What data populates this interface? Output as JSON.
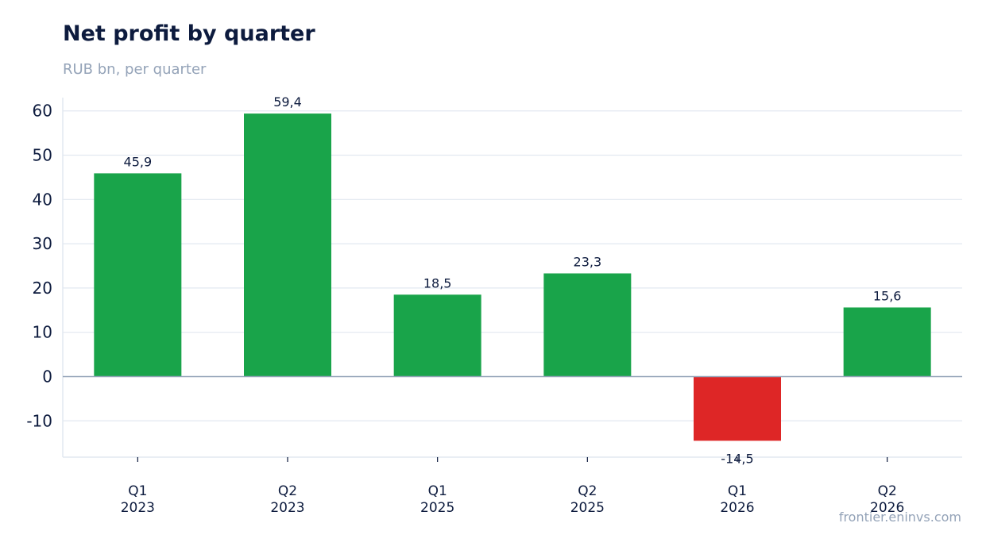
{
  "header": {
    "title": "Net profit by quarter",
    "subtitle": "RUB bn, per quarter"
  },
  "footer": {
    "source": "frontier.eninvs.com"
  },
  "colors": {
    "positive": "#19a44a",
    "negative": "#de2626",
    "grid": "#e2e8f0",
    "zero_line": "#94a3b8",
    "text": "#0d1b3e"
  },
  "chart_data": {
    "type": "bar",
    "title": "Net profit by quarter",
    "subtitle": "RUB bn, per quarter",
    "xlabel": "",
    "ylabel": "",
    "categories": [
      [
        "Q1",
        "2023"
      ],
      [
        "Q2",
        "2023"
      ],
      [
        "Q1",
        "2025"
      ],
      [
        "Q2",
        "2025"
      ],
      [
        "Q1",
        "2026"
      ],
      [
        "Q2",
        "2026"
      ]
    ],
    "values": [
      45.9,
      59.4,
      18.5,
      23.3,
      -14.5,
      15.6
    ],
    "value_labels": [
      "45,9",
      "59,4",
      "18,5",
      "23,3",
      "-14,5",
      "15,6"
    ],
    "yticks": [
      -10,
      0,
      10,
      20,
      30,
      40,
      50,
      60
    ],
    "ylim": [
      -18.2,
      63
    ],
    "grid": true,
    "legend": "none"
  }
}
